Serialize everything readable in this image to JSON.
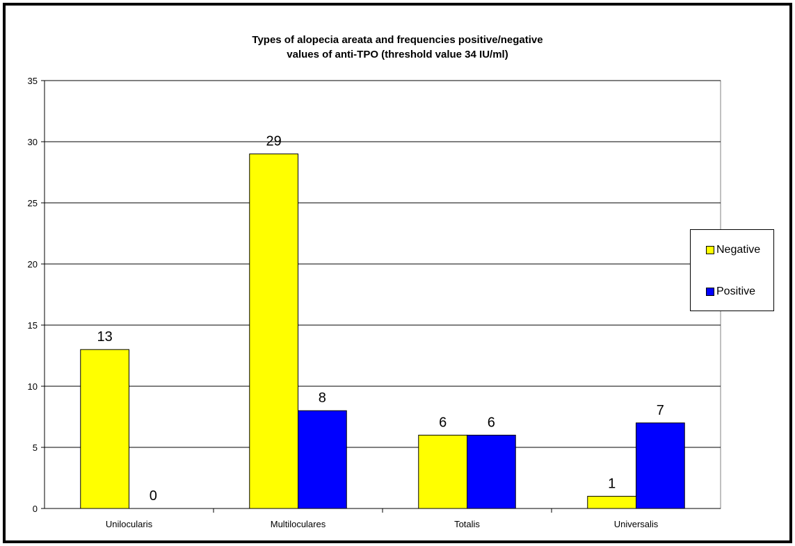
{
  "chart_data": {
    "type": "bar",
    "title_lines": [
      "Types of alopecia areata and frequencies positive/negative",
      "values of anti-TPO (threshold value 34 IU/ml)"
    ],
    "categories": [
      "Unilocularis",
      "Multiloculares",
      "Totalis",
      "Universalis"
    ],
    "series": [
      {
        "name": "Negative",
        "values": [
          13,
          29,
          6,
          1
        ],
        "color": "#ffff00"
      },
      {
        "name": "Positive",
        "values": [
          0,
          8,
          6,
          7
        ],
        "color": "#0000ff"
      }
    ],
    "ylim": [
      0,
      35
    ],
    "yticks": [
      0,
      5,
      10,
      15,
      20,
      25,
      30,
      35
    ],
    "grid": true,
    "legend_position": "right"
  }
}
